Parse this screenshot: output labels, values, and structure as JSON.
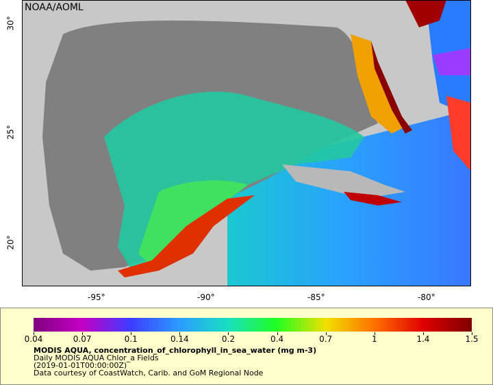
{
  "map": {
    "credit": "NOAA/AOML",
    "x_ticks": [
      "-95°",
      "-90°",
      "-85°",
      "-80°"
    ],
    "y_ticks": [
      "30°",
      "25°",
      "20°"
    ],
    "land_color": "#c8c8c8",
    "nodata_color": "#808080"
  },
  "legend": {
    "colors": [
      "#7e007e",
      "#c400c4",
      "#3c3cff",
      "#2a9cff",
      "#19e0c0",
      "#20ff20",
      "#f0e000",
      "#ff7000",
      "#e00000",
      "#7e0000"
    ],
    "ticks": [
      "0.04",
      "0.07",
      "0.1",
      "0.14",
      "0.2",
      "0.4",
      "0.7",
      "1",
      "1.4",
      "1.5"
    ],
    "title": "MODIS AQUA, concentration_of_chlorophyll_in_sea_water (mg m-3)",
    "dataset": "Daily MODIS AQUA Chlor_a Fields",
    "time": "(2019-01-01T00:00:00Z)",
    "courtesy": "Data courtesy of CoastWatch, Carib. and GoM Regional Node"
  }
}
